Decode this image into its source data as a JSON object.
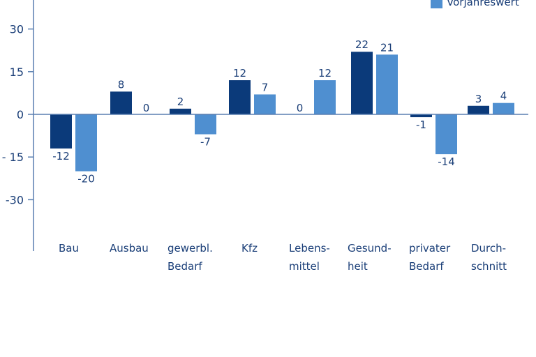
{
  "chart_data": {
    "type": "bar",
    "title": "",
    "xlabel": "",
    "ylabel": "",
    "ylim": [
      -45,
      40
    ],
    "yticks": [
      30,
      15,
      0,
      -15,
      -30
    ],
    "ytick_labels": [
      "30",
      "15",
      "0",
      "- 15",
      "-30"
    ],
    "categories": [
      "Bau",
      "Ausbau",
      "gewerbl.\nBedarf",
      "Kfz",
      "Lebens-\nmittel",
      "Gesund-\nheit",
      "privater\nBedarf",
      "Durch-\nschnitt"
    ],
    "series": [
      {
        "name": "",
        "color": "#0b3a7a",
        "values": [
          -12,
          8,
          2,
          12,
          0,
          22,
          -1,
          3
        ]
      },
      {
        "name": "Vorjahreswert",
        "color": "#4f8fd0",
        "values": [
          -20,
          0,
          -7,
          7,
          12,
          21,
          -14,
          4
        ]
      }
    ],
    "legend": {
      "placement": "top-right",
      "entries": [
        "Vorjahreswert"
      ]
    },
    "grid": false
  }
}
